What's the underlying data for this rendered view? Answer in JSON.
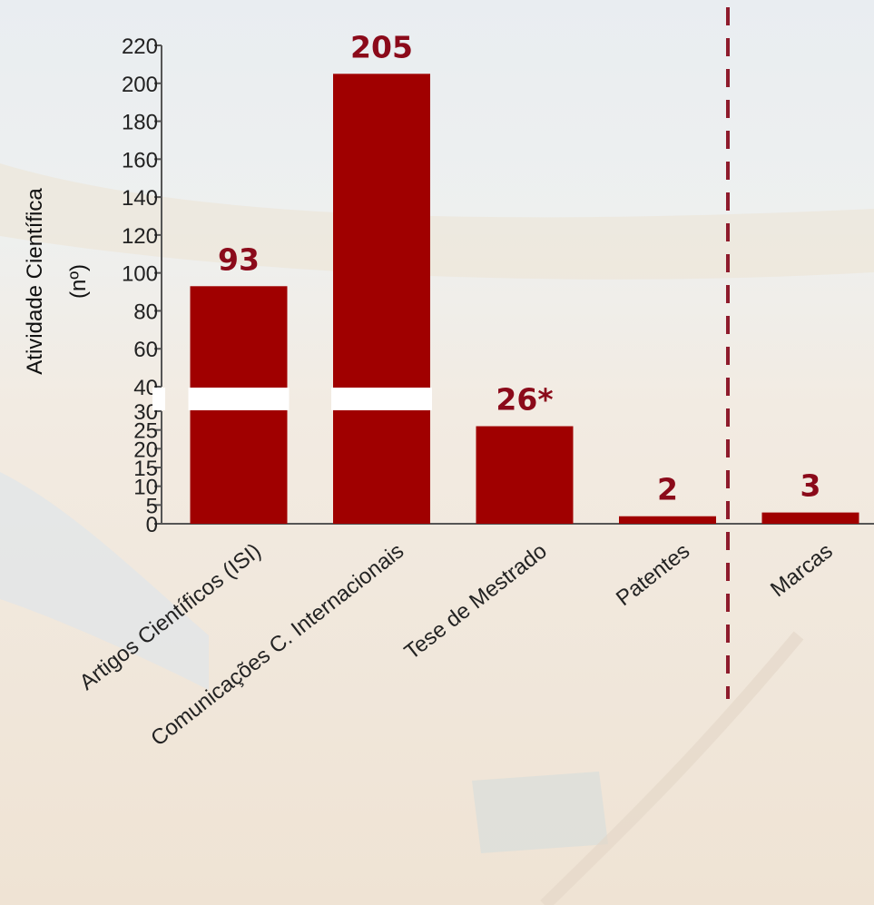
{
  "chart_data": {
    "type": "bar",
    "ylabel": "Atividade Científica",
    "ylabel_unit": "(nº)",
    "categories": [
      "Artigos Científicos (ISI)",
      "Comunicações C. Internacionais",
      "Tese de Mestrado",
      "Patentes",
      "Marcas"
    ],
    "values": [
      93,
      205,
      26,
      2,
      3
    ],
    "data_labels": [
      "93",
      "205",
      "26*",
      "2",
      "3"
    ],
    "y_axis_broken": true,
    "y_segments": [
      {
        "range": [
          0,
          30
        ],
        "ticks": [
          0,
          5,
          10,
          15,
          20,
          25,
          30
        ]
      },
      {
        "range": [
          40,
          220
        ],
        "ticks": [
          40,
          60,
          80,
          100,
          120,
          140,
          160,
          180,
          200,
          220
        ]
      }
    ],
    "separator_after_category": "Patentes",
    "separator_style": "dashed",
    "grid": false,
    "legend": "none"
  },
  "colors": {
    "bar": "#A00000",
    "label": "#8B0A1A",
    "separator": "#8E1B2C",
    "axis": "#555555"
  }
}
